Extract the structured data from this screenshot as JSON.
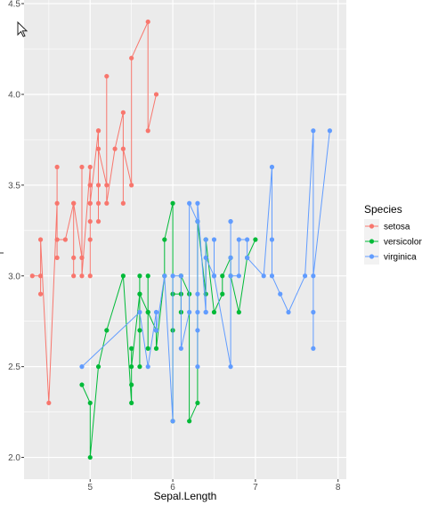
{
  "chart_data": {
    "type": "line",
    "xlabel": "Sepal.Length",
    "ylabel": "",
    "xlim": [
      4.2,
      8.1
    ],
    "ylim": [
      1.88,
      4.52
    ],
    "x_ticks": [
      "5",
      "6",
      "7",
      "8"
    ],
    "y_ticks": [
      "2.0",
      "2.5",
      "3.0",
      "3.5",
      "4.0",
      "4.5"
    ],
    "grid": true,
    "legend": {
      "title": "Species",
      "position": "right"
    },
    "series": [
      {
        "name": "setosa",
        "color": "#F8766D",
        "points": [
          [
            4.3,
            3.0
          ],
          [
            4.4,
            3.0
          ],
          [
            4.4,
            2.9
          ],
          [
            4.4,
            3.2
          ],
          [
            4.5,
            2.3
          ],
          [
            4.6,
            3.4
          ],
          [
            4.6,
            3.1
          ],
          [
            4.6,
            3.6
          ],
          [
            4.6,
            3.2
          ],
          [
            4.7,
            3.2
          ],
          [
            4.8,
            3.4
          ],
          [
            4.8,
            3.1
          ],
          [
            4.8,
            3.0
          ],
          [
            4.8,
            3.4
          ],
          [
            4.9,
            3.1
          ],
          [
            4.9,
            3.6
          ],
          [
            4.9,
            3.1
          ],
          [
            4.9,
            3.0
          ],
          [
            5.0,
            3.6
          ],
          [
            5.0,
            3.3
          ],
          [
            5.0,
            3.0
          ],
          [
            5.0,
            3.4
          ],
          [
            5.0,
            3.5
          ],
          [
            5.0,
            3.5
          ],
          [
            5.0,
            3.2
          ],
          [
            5.0,
            3.4
          ],
          [
            5.1,
            3.8
          ],
          [
            5.1,
            3.3
          ],
          [
            5.1,
            3.8
          ],
          [
            5.1,
            3.4
          ],
          [
            5.1,
            3.5
          ],
          [
            5.1,
            3.7
          ],
          [
            5.2,
            3.5
          ],
          [
            5.2,
            4.1
          ],
          [
            5.2,
            3.4
          ],
          [
            5.3,
            3.7
          ],
          [
            5.4,
            3.9
          ],
          [
            5.4,
            3.4
          ],
          [
            5.4,
            3.7
          ],
          [
            5.5,
            3.5
          ],
          [
            5.5,
            4.2
          ],
          [
            5.7,
            4.4
          ],
          [
            5.7,
            3.8
          ],
          [
            5.8,
            4.0
          ]
        ]
      },
      {
        "name": "versicolor",
        "color": "#00BA38",
        "points": [
          [
            4.9,
            2.4
          ],
          [
            5.0,
            2.3
          ],
          [
            5.0,
            2.0
          ],
          [
            5.1,
            2.5
          ],
          [
            5.2,
            2.7
          ],
          [
            5.4,
            3.0
          ],
          [
            5.5,
            2.3
          ],
          [
            5.5,
            2.4
          ],
          [
            5.5,
            2.6
          ],
          [
            5.5,
            2.5
          ],
          [
            5.6,
            2.9
          ],
          [
            5.6,
            3.0
          ],
          [
            5.6,
            2.5
          ],
          [
            5.6,
            2.7
          ],
          [
            5.6,
            2.9
          ],
          [
            5.7,
            2.8
          ],
          [
            5.7,
            2.6
          ],
          [
            5.7,
            3.0
          ],
          [
            5.7,
            2.8
          ],
          [
            5.8,
            2.7
          ],
          [
            5.8,
            2.7
          ],
          [
            5.8,
            2.6
          ],
          [
            5.9,
            3.0
          ],
          [
            5.9,
            3.2
          ],
          [
            6.0,
            3.4
          ],
          [
            6.0,
            2.2
          ],
          [
            6.0,
            2.7
          ],
          [
            6.0,
            2.9
          ],
          [
            6.1,
            2.9
          ],
          [
            6.1,
            2.8
          ],
          [
            6.1,
            3.0
          ],
          [
            6.2,
            2.9
          ],
          [
            6.2,
            2.2
          ],
          [
            6.3,
            2.3
          ],
          [
            6.3,
            3.3
          ],
          [
            6.4,
            2.9
          ],
          [
            6.4,
            3.2
          ],
          [
            6.5,
            2.8
          ],
          [
            6.6,
            2.9
          ],
          [
            6.6,
            3.0
          ],
          [
            6.7,
            3.1
          ],
          [
            6.7,
            3.0
          ],
          [
            6.8,
            2.8
          ],
          [
            6.9,
            3.1
          ],
          [
            7.0,
            3.2
          ]
        ]
      },
      {
        "name": "virginica",
        "color": "#619CFF",
        "points": [
          [
            4.9,
            2.5
          ],
          [
            5.6,
            2.8
          ],
          [
            5.7,
            2.5
          ],
          [
            5.8,
            2.8
          ],
          [
            5.8,
            2.7
          ],
          [
            5.8,
            2.7
          ],
          [
            5.9,
            3.0
          ],
          [
            6.0,
            2.2
          ],
          [
            6.0,
            3.0
          ],
          [
            6.1,
            3.0
          ],
          [
            6.1,
            2.6
          ],
          [
            6.2,
            2.8
          ],
          [
            6.2,
            3.4
          ],
          [
            6.3,
            3.3
          ],
          [
            6.3,
            2.9
          ],
          [
            6.3,
            2.7
          ],
          [
            6.3,
            2.8
          ],
          [
            6.3,
            2.5
          ],
          [
            6.3,
            3.4
          ],
          [
            6.4,
            2.8
          ],
          [
            6.4,
            3.2
          ],
          [
            6.4,
            2.8
          ],
          [
            6.4,
            3.1
          ],
          [
            6.5,
            3.0
          ],
          [
            6.5,
            3.2
          ],
          [
            6.5,
            3.0
          ],
          [
            6.5,
            3.0
          ],
          [
            6.7,
            2.5
          ],
          [
            6.7,
            3.3
          ],
          [
            6.7,
            3.1
          ],
          [
            6.7,
            3.3
          ],
          [
            6.7,
            3.0
          ],
          [
            6.8,
            3.0
          ],
          [
            6.8,
            3.2
          ],
          [
            6.9,
            3.2
          ],
          [
            6.9,
            3.1
          ],
          [
            7.1,
            3.0
          ],
          [
            7.2,
            3.6
          ],
          [
            7.2,
            3.2
          ],
          [
            7.2,
            3.0
          ],
          [
            7.3,
            2.9
          ],
          [
            7.4,
            2.8
          ],
          [
            7.6,
            3.0
          ],
          [
            7.7,
            3.8
          ],
          [
            7.7,
            2.6
          ],
          [
            7.7,
            2.8
          ],
          [
            7.7,
            3.0
          ],
          [
            7.9,
            3.8
          ]
        ]
      }
    ]
  }
}
